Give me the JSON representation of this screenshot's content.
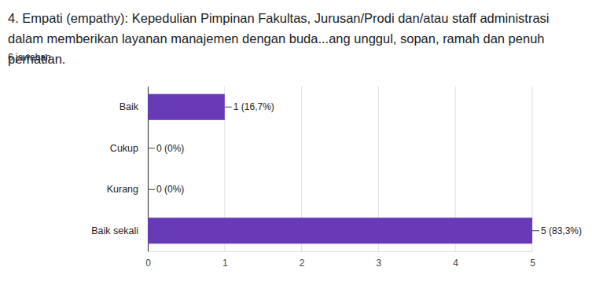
{
  "chart_data": {
    "type": "bar",
    "orientation": "horizontal",
    "title": "4. Empati (empathy):  Kepedulian Pimpinan Fakultas, Jurusan/Prodi dan/atau staff administrasi dalam memberikan layanan manajemen dengan buda...ang unggul, sopan, ramah dan penuh perhatian.",
    "subtitle": "6 jawaban",
    "categories": [
      "Baik",
      "Cukup",
      "Kurang",
      "Baik sekali"
    ],
    "values": [
      1,
      0,
      0,
      5
    ],
    "value_labels": [
      "1 (16,7%)",
      "0 (0%)",
      "0 (0%)",
      "5 (83,3%)"
    ],
    "data_labels": true,
    "color": "#673ab7",
    "xlim": [
      0,
      5
    ],
    "xticks": [
      0,
      1,
      2,
      3,
      4,
      5
    ],
    "grid": true
  }
}
